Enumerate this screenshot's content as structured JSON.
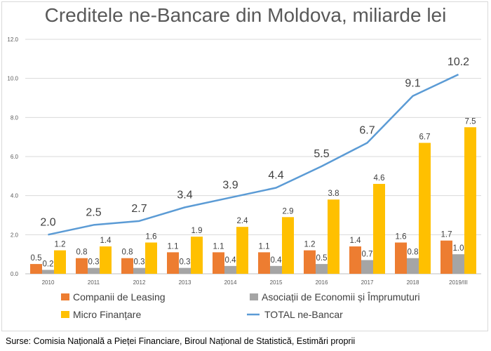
{
  "chart_data": {
    "type": "bar",
    "title": "Creditele ne-Bancare din Moldova, miliarde lei",
    "categories": [
      "2010",
      "2011",
      "2012",
      "2013",
      "2014",
      "2015",
      "2016",
      "2017",
      "2018",
      "2019/III"
    ],
    "ylim": [
      0,
      12
    ],
    "yticks": [
      "0.0",
      "2.0",
      "4.0",
      "6.0",
      "8.0",
      "10.0",
      "12.0"
    ],
    "ytick_values": [
      0,
      2,
      4,
      6,
      8,
      10,
      12
    ],
    "grid": true,
    "legend_position": "bottom",
    "series": [
      {
        "name": "Companii de Leasing",
        "type": "bar",
        "color": "#ed7d31",
        "values": [
          0.5,
          0.8,
          0.8,
          1.1,
          1.1,
          1.1,
          1.2,
          1.4,
          1.6,
          1.7
        ],
        "labels": [
          "0.5",
          "0.8",
          "0.8",
          "1.1",
          "1.1",
          "1.1",
          "1.2",
          "1.4",
          "1.6",
          "1.7"
        ]
      },
      {
        "name": "Asociații de Economii și Împrumuturi",
        "type": "bar",
        "color": "#a5a5a5",
        "values": [
          0.2,
          0.3,
          0.3,
          0.3,
          0.4,
          0.4,
          0.5,
          0.7,
          0.8,
          1.0
        ],
        "labels": [
          "0.2",
          "0.3",
          "0.3",
          "0.3",
          "0.4",
          "0.4",
          "0.5",
          "0.7",
          "0.8",
          "1.0"
        ]
      },
      {
        "name": "Micro Finanțare",
        "type": "bar",
        "color": "#ffc000",
        "values": [
          1.2,
          1.4,
          1.6,
          1.9,
          2.4,
          2.9,
          3.8,
          4.6,
          6.7,
          7.5
        ],
        "labels": [
          "1.2",
          "1.4",
          "1.6",
          "1.9",
          "2.4",
          "2.9",
          "3.8",
          "4.6",
          "6.7",
          "7.5"
        ]
      },
      {
        "name": "TOTAL ne-Bancar",
        "type": "line",
        "color": "#5b9bd5",
        "values": [
          2.0,
          2.5,
          2.7,
          3.4,
          3.9,
          4.4,
          5.5,
          6.7,
          9.1,
          10.2
        ],
        "labels": [
          "2.0",
          "2.5",
          "2.7",
          "3.4",
          "3.9",
          "4.4",
          "5.5",
          "6.7",
          "9.1",
          "10.2"
        ]
      }
    ]
  },
  "source": "Surse:  Comisia Națională a Pieței Financiare, Biroul Național de Statistică, Estimări proprii"
}
